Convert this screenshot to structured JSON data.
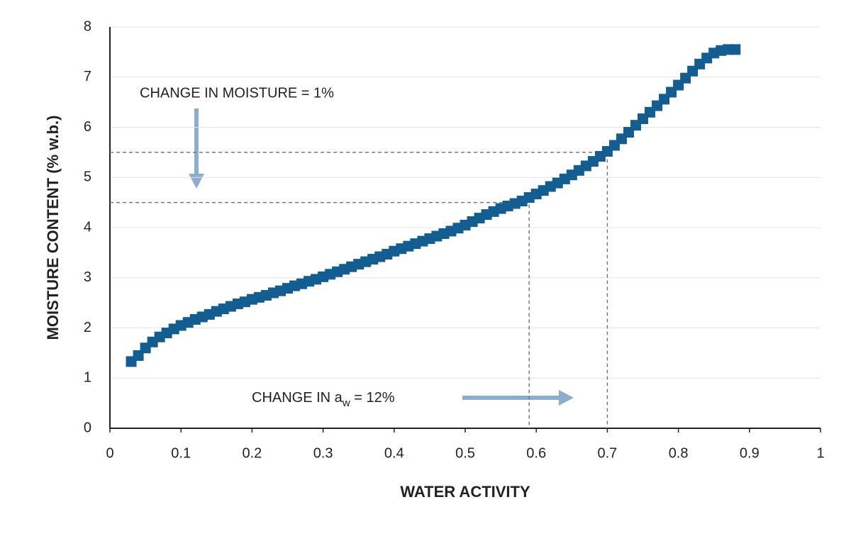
{
  "chart_data": {
    "type": "scatter",
    "xlabel": "WATER ACTIVITY",
    "ylabel": "MOISTURE CONTENT (% w.b.)",
    "xlim": [
      0,
      1
    ],
    "ylim": [
      0,
      8
    ],
    "xticks": [
      0,
      0.1,
      0.2,
      0.3,
      0.4,
      0.5,
      0.6,
      0.7,
      0.8,
      0.9,
      1
    ],
    "yticks": [
      0,
      1,
      2,
      3,
      4,
      5,
      6,
      7,
      8
    ],
    "grid": true,
    "color": "#135d91",
    "x": [
      0.03,
      0.04,
      0.05,
      0.06,
      0.07,
      0.08,
      0.09,
      0.1,
      0.11,
      0.12,
      0.13,
      0.14,
      0.15,
      0.16,
      0.17,
      0.18,
      0.19,
      0.2,
      0.21,
      0.22,
      0.23,
      0.24,
      0.25,
      0.26,
      0.27,
      0.28,
      0.29,
      0.3,
      0.31,
      0.32,
      0.33,
      0.34,
      0.35,
      0.36,
      0.37,
      0.38,
      0.39,
      0.4,
      0.41,
      0.42,
      0.43,
      0.44,
      0.45,
      0.46,
      0.47,
      0.48,
      0.49,
      0.5,
      0.51,
      0.52,
      0.53,
      0.54,
      0.55,
      0.56,
      0.57,
      0.58,
      0.59,
      0.6,
      0.61,
      0.62,
      0.63,
      0.64,
      0.65,
      0.66,
      0.67,
      0.68,
      0.69,
      0.7,
      0.71,
      0.72,
      0.73,
      0.74,
      0.75,
      0.76,
      0.77,
      0.78,
      0.79,
      0.8,
      0.81,
      0.82,
      0.83,
      0.84,
      0.85,
      0.86,
      0.87,
      0.88
    ],
    "values": [
      1.33,
      1.45,
      1.6,
      1.72,
      1.82,
      1.9,
      1.98,
      2.05,
      2.11,
      2.17,
      2.22,
      2.27,
      2.33,
      2.38,
      2.43,
      2.48,
      2.52,
      2.57,
      2.61,
      2.65,
      2.7,
      2.74,
      2.79,
      2.84,
      2.88,
      2.93,
      2.97,
      3.02,
      3.07,
      3.12,
      3.17,
      3.22,
      3.27,
      3.32,
      3.37,
      3.42,
      3.47,
      3.53,
      3.58,
      3.63,
      3.68,
      3.73,
      3.78,
      3.83,
      3.88,
      3.93,
      3.99,
      4.05,
      4.12,
      4.19,
      4.26,
      4.32,
      4.38,
      4.43,
      4.48,
      4.53,
      4.6,
      4.67,
      4.74,
      4.82,
      4.89,
      4.97,
      5.05,
      5.14,
      5.23,
      5.32,
      5.42,
      5.52,
      5.64,
      5.77,
      5.9,
      6.04,
      6.17,
      6.3,
      6.43,
      6.56,
      6.7,
      6.84,
      6.98,
      7.12,
      7.26,
      7.38,
      7.48,
      7.53,
      7.55,
      7.55
    ],
    "guides": [
      {
        "x": 0.7,
        "y": 5.5
      },
      {
        "x": 0.59,
        "y": 4.5
      }
    ],
    "annotations": [
      {
        "text": "CHANGE IN MOISTURE = 1%"
      },
      {
        "text": "CHANGE IN a",
        "sub": "w",
        "tail": " = 12%"
      }
    ]
  }
}
